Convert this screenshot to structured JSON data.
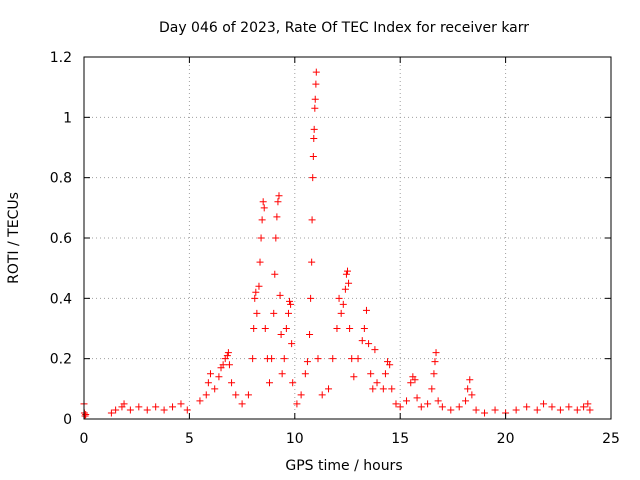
{
  "chart_data": {
    "type": "scatter",
    "title": "Day 046 of 2023, Rate Of TEC Index for receiver karr",
    "xlabel": "GPS time / hours",
    "ylabel": "ROTI / TECUs",
    "xlim": [
      0,
      25
    ],
    "ylim": [
      0,
      1.2
    ],
    "x_ticks": [
      0,
      5,
      10,
      15,
      20,
      25
    ],
    "x_tick_labels": [
      "0",
      "5",
      "10",
      "15",
      "20",
      "25"
    ],
    "y_ticks": [
      0,
      0.2,
      0.4,
      0.6,
      0.8,
      1.0,
      1.2
    ],
    "y_tick_labels": [
      "0",
      "0.2",
      "0.4",
      "0.6",
      "0.8",
      "1",
      "1.2"
    ],
    "grid": true,
    "marker": "+",
    "color": "#ff0000",
    "series": [
      {
        "name": "ROTI",
        "points": [
          [
            0.0,
            0.05
          ],
          [
            0.02,
            0.02
          ],
          [
            0.05,
            0.01
          ],
          [
            0.08,
            0.015
          ],
          [
            1.3,
            0.02
          ],
          [
            1.5,
            0.03
          ],
          [
            1.8,
            0.04
          ],
          [
            1.9,
            0.05
          ],
          [
            2.2,
            0.03
          ],
          [
            2.6,
            0.04
          ],
          [
            3.0,
            0.03
          ],
          [
            3.4,
            0.04
          ],
          [
            3.8,
            0.03
          ],
          [
            4.2,
            0.04
          ],
          [
            4.6,
            0.05
          ],
          [
            4.9,
            0.03
          ],
          [
            5.5,
            0.06
          ],
          [
            5.8,
            0.08
          ],
          [
            5.9,
            0.12
          ],
          [
            6.0,
            0.15
          ],
          [
            6.2,
            0.1
          ],
          [
            6.4,
            0.14
          ],
          [
            6.5,
            0.17
          ],
          [
            6.6,
            0.18
          ],
          [
            6.7,
            0.2
          ],
          [
            6.8,
            0.21
          ],
          [
            6.85,
            0.22
          ],
          [
            6.9,
            0.18
          ],
          [
            7.0,
            0.12
          ],
          [
            7.2,
            0.08
          ],
          [
            7.5,
            0.05
          ],
          [
            7.8,
            0.08
          ],
          [
            8.0,
            0.2
          ],
          [
            8.05,
            0.3
          ],
          [
            8.1,
            0.4
          ],
          [
            8.15,
            0.42
          ],
          [
            8.2,
            0.35
          ],
          [
            8.3,
            0.44
          ],
          [
            8.35,
            0.52
          ],
          [
            8.4,
            0.6
          ],
          [
            8.45,
            0.66
          ],
          [
            8.5,
            0.72
          ],
          [
            8.55,
            0.7
          ],
          [
            8.6,
            0.3
          ],
          [
            8.7,
            0.2
          ],
          [
            8.8,
            0.12
          ],
          [
            8.9,
            0.2
          ],
          [
            9.0,
            0.35
          ],
          [
            9.05,
            0.48
          ],
          [
            9.1,
            0.6
          ],
          [
            9.15,
            0.67
          ],
          [
            9.2,
            0.72
          ],
          [
            9.25,
            0.74
          ],
          [
            9.3,
            0.41
          ],
          [
            9.35,
            0.28
          ],
          [
            9.4,
            0.15
          ],
          [
            9.5,
            0.2
          ],
          [
            9.6,
            0.3
          ],
          [
            9.7,
            0.35
          ],
          [
            9.75,
            0.39
          ],
          [
            9.8,
            0.38
          ],
          [
            9.85,
            0.25
          ],
          [
            9.9,
            0.12
          ],
          [
            10.1,
            0.05
          ],
          [
            10.3,
            0.08
          ],
          [
            10.5,
            0.15
          ],
          [
            10.6,
            0.19
          ],
          [
            10.7,
            0.28
          ],
          [
            10.75,
            0.4
          ],
          [
            10.8,
            0.52
          ],
          [
            10.82,
            0.66
          ],
          [
            10.85,
            0.8
          ],
          [
            10.88,
            0.87
          ],
          [
            10.9,
            0.93
          ],
          [
            10.92,
            0.96
          ],
          [
            10.95,
            1.03
          ],
          [
            10.97,
            1.06
          ],
          [
            11.0,
            1.11
          ],
          [
            11.02,
            1.15
          ],
          [
            11.1,
            0.2
          ],
          [
            11.3,
            0.08
          ],
          [
            11.6,
            0.1
          ],
          [
            11.8,
            0.2
          ],
          [
            12.0,
            0.3
          ],
          [
            12.1,
            0.4
          ],
          [
            12.2,
            0.35
          ],
          [
            12.3,
            0.38
          ],
          [
            12.4,
            0.43
          ],
          [
            12.45,
            0.48
          ],
          [
            12.5,
            0.49
          ],
          [
            12.55,
            0.45
          ],
          [
            12.6,
            0.3
          ],
          [
            12.7,
            0.2
          ],
          [
            12.8,
            0.14
          ],
          [
            13.0,
            0.2
          ],
          [
            13.2,
            0.26
          ],
          [
            13.3,
            0.3
          ],
          [
            13.4,
            0.36
          ],
          [
            13.5,
            0.25
          ],
          [
            13.6,
            0.15
          ],
          [
            13.7,
            0.1
          ],
          [
            13.8,
            0.23
          ],
          [
            13.9,
            0.12
          ],
          [
            14.2,
            0.1
          ],
          [
            14.3,
            0.15
          ],
          [
            14.4,
            0.19
          ],
          [
            14.5,
            0.18
          ],
          [
            14.6,
            0.1
          ],
          [
            14.8,
            0.05
          ],
          [
            15.0,
            0.04
          ],
          [
            15.3,
            0.06
          ],
          [
            15.5,
            0.12
          ],
          [
            15.6,
            0.14
          ],
          [
            15.7,
            0.13
          ],
          [
            15.8,
            0.07
          ],
          [
            16.0,
            0.04
          ],
          [
            16.3,
            0.05
          ],
          [
            16.5,
            0.1
          ],
          [
            16.6,
            0.15
          ],
          [
            16.65,
            0.19
          ],
          [
            16.7,
            0.22
          ],
          [
            16.8,
            0.06
          ],
          [
            17.0,
            0.04
          ],
          [
            17.4,
            0.03
          ],
          [
            17.8,
            0.04
          ],
          [
            18.1,
            0.06
          ],
          [
            18.2,
            0.1
          ],
          [
            18.3,
            0.13
          ],
          [
            18.4,
            0.08
          ],
          [
            18.6,
            0.03
          ],
          [
            19.0,
            0.02
          ],
          [
            19.5,
            0.03
          ],
          [
            20.0,
            0.02
          ],
          [
            20.5,
            0.03
          ],
          [
            21.0,
            0.04
          ],
          [
            21.5,
            0.03
          ],
          [
            21.8,
            0.05
          ],
          [
            22.2,
            0.04
          ],
          [
            22.6,
            0.03
          ],
          [
            23.0,
            0.04
          ],
          [
            23.4,
            0.03
          ],
          [
            23.7,
            0.04
          ],
          [
            23.9,
            0.05
          ],
          [
            24.0,
            0.03
          ]
        ]
      }
    ]
  }
}
